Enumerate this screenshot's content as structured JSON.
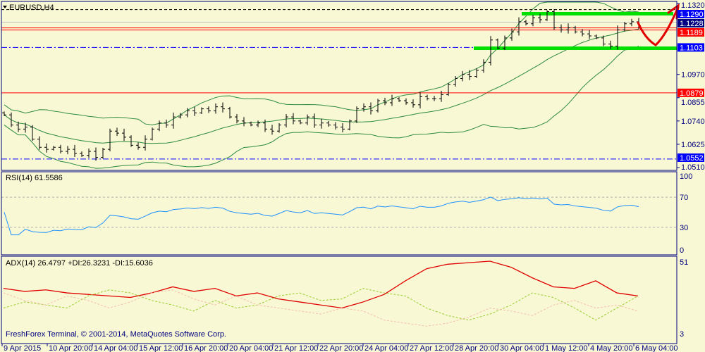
{
  "chart_title": "EURUSD,H4",
  "copyright": "FreshForex Terminal, © 2001-2014, MetaQuotes Software Corp.",
  "colors": {
    "bg": "#f8f8d4",
    "axis": "#000080",
    "candle": "#000000",
    "bands": "#2e8b3e",
    "rsi": "#1e90ff",
    "adx": "#e00000",
    "plus_di": "#9acd32",
    "minus_di": "#f4c0b0",
    "highlight": "#00e000",
    "arrow": "#e00000"
  },
  "chart_data": [
    {
      "type": "candlestick",
      "title": "EURUSD,H4",
      "ylim": [
        1.051,
        1.132
      ],
      "price_ticks": [
        "1.1320",
        "1.0970",
        "1.0855",
        "1.0740",
        "1.0625",
        "1.0510"
      ],
      "x_labels": [
        "9 Apr 2015",
        "10 Apr 20:00",
        "14 Apr 04:00",
        "15 Apr 12:00",
        "16 Apr 20:00",
        "20 Apr 04:00",
        "21 Apr 12:00",
        "22 Apr 20:00",
        "24 Apr 04:00",
        "27 Apr 12:00",
        "28 Apr 20:00",
        "30 Apr 04:00",
        "1 May 12:00",
        "4 May 20:00",
        "6 May 04:00"
      ],
      "closes": [
        1.077,
        1.072,
        1.07,
        1.071,
        1.065,
        1.061,
        1.06,
        1.061,
        1.059,
        1.06,
        1.058,
        1.057,
        1.059,
        1.056,
        1.06,
        1.069,
        1.068,
        1.066,
        1.062,
        1.061,
        1.065,
        1.07,
        1.073,
        1.072,
        1.076,
        1.077,
        1.079,
        1.078,
        1.08,
        1.079,
        1.081,
        1.08,
        1.076,
        1.074,
        1.073,
        1.072,
        1.073,
        1.07,
        1.069,
        1.072,
        1.076,
        1.074,
        1.073,
        1.076,
        1.072,
        1.073,
        1.072,
        1.071,
        1.07,
        1.074,
        1.08,
        1.081,
        1.079,
        1.084,
        1.083,
        1.085,
        1.084,
        1.083,
        1.082,
        1.086,
        1.085,
        1.085,
        1.087,
        1.092,
        1.095,
        1.097,
        1.096,
        1.099,
        1.103,
        1.114,
        1.11,
        1.115,
        1.118,
        1.123,
        1.122,
        1.125,
        1.124,
        1.128,
        1.12,
        1.119,
        1.12,
        1.118,
        1.117,
        1.116,
        1.115,
        1.112,
        1.111,
        1.119,
        1.122,
        1.123,
        1.121
      ],
      "levels": [
        {
          "price": "1.1290",
          "style": "dashed",
          "color": "#000000",
          "label_bg": "#0000ff"
        },
        {
          "price": "1.1228",
          "style": "solid",
          "color": "#c0c0c0",
          "label_bg": "#000080"
        },
        {
          "price": "1.1189",
          "style": "solid",
          "color": "#ff0000",
          "label_bg": "#ff0000"
        },
        {
          "price": "1.1103",
          "style": "dashdot",
          "color": "#0000ff",
          "label_bg": "#0000ff"
        },
        {
          "price": "1.0879",
          "style": "solid",
          "color": "#ff0000",
          "label_bg": "#ff0000"
        },
        {
          "price": "1.0552",
          "style": "dashdot",
          "color": "#0000ff",
          "label_bg": "#0000ff"
        }
      ]
    },
    {
      "type": "line",
      "title": "RSI(14) 61.5586",
      "ylim": [
        0,
        100
      ],
      "ticks": [
        "100",
        "70",
        "30",
        "0"
      ],
      "levels": [
        70,
        30
      ]
    },
    {
      "type": "line",
      "title": "ADX(14) 26.4797 +DI:26.3231 -DI:15.6036",
      "ylim": [
        3,
        51
      ],
      "ticks": [
        "51",
        "3"
      ],
      "series": [
        {
          "name": "ADX",
          "values": [
            33,
            31,
            32,
            30,
            29,
            28,
            27,
            30,
            34,
            31,
            33,
            28,
            30,
            26,
            24,
            22,
            20,
            24,
            29,
            38,
            46,
            49,
            50,
            51,
            47,
            40,
            34,
            33,
            38,
            30,
            28
          ]
        },
        {
          "name": "+DI",
          "values": [
            20,
            24,
            22,
            20,
            28,
            32,
            30,
            25,
            22,
            18,
            25,
            20,
            22,
            28,
            30,
            25,
            26,
            33,
            30,
            28,
            20,
            15,
            12,
            16,
            22,
            30,
            27,
            20,
            12,
            20,
            28
          ]
        },
        {
          "name": "-DI",
          "values": [
            30,
            25,
            22,
            28,
            25,
            20,
            24,
            30,
            32,
            26,
            22,
            28,
            22,
            20,
            18,
            16,
            20,
            18,
            12,
            10,
            8,
            10,
            14,
            20,
            18,
            15,
            22,
            25,
            20,
            22,
            18
          ]
        }
      ]
    }
  ]
}
